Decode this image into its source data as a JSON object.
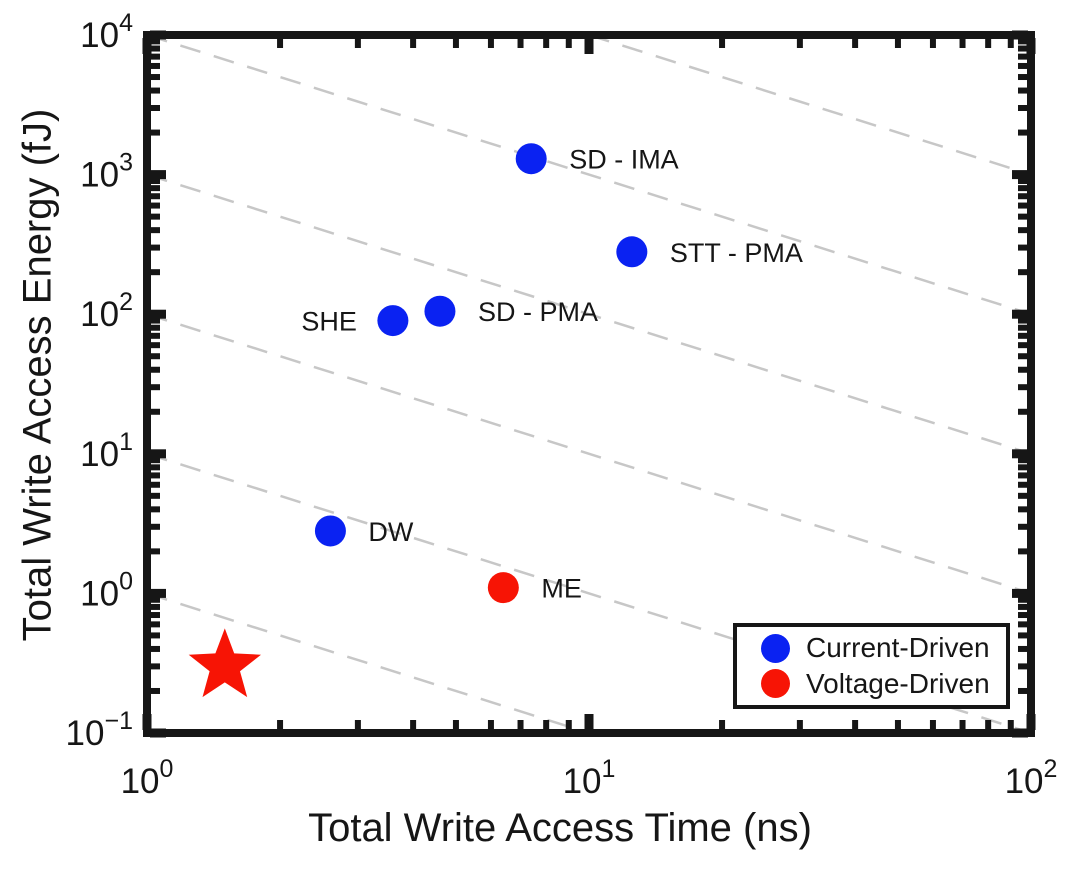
{
  "chart_data": {
    "type": "scatter",
    "title": "",
    "xlabel": "Total Write Access Time (ns)",
    "ylabel": "Total Write Access Energy (fJ)",
    "xscale": "log",
    "yscale": "log",
    "xlim": [
      1,
      100
    ],
    "ylim": [
      0.1,
      10000
    ],
    "x_decade_range": [
      0,
      2
    ],
    "y_decade_range": [
      -1,
      4
    ],
    "x_tick_exponents": [
      0,
      1,
      2
    ],
    "y_tick_exponents": [
      4,
      3,
      2,
      1,
      0,
      -1
    ],
    "guide_lines": {
      "style": "dashed",
      "color": "#c7c7c7",
      "slope_loglog": -1,
      "meaning": "constant energy-delay-product diagonals",
      "intercept_exponents": [
        0,
        1,
        2,
        3,
        4,
        5
      ]
    },
    "series": [
      {
        "name": "Current-Driven",
        "marker": "circle",
        "color": "#0a22f2",
        "points": [
          {
            "label": "SD - IMA",
            "x": 7.4,
            "y": 1300,
            "label_side": "right"
          },
          {
            "label": "STT - PMA",
            "x": 12.5,
            "y": 280,
            "label_side": "right"
          },
          {
            "label": "SD - PMA",
            "x": 4.6,
            "y": 105,
            "label_side": "right"
          },
          {
            "label": "SHE",
            "x": 3.6,
            "y": 90,
            "label_side": "left"
          },
          {
            "label": "DW",
            "x": 2.6,
            "y": 2.8,
            "label_side": "right"
          }
        ]
      },
      {
        "name": "Voltage-Driven",
        "marker": "circle",
        "color": "#f71405",
        "points": [
          {
            "label": "ME",
            "x": 6.4,
            "y": 1.1,
            "label_side": "right"
          }
        ]
      },
      {
        "name": "star",
        "marker": "star",
        "color": "#f71405",
        "points": [
          {
            "label": "",
            "x": 1.5,
            "y": 0.3,
            "label_side": "right"
          }
        ]
      }
    ],
    "legend": {
      "position": "bottom-right",
      "entries": [
        {
          "label": "Current-Driven",
          "color": "#0a22f2"
        },
        {
          "label": "Voltage-Driven",
          "color": "#f71405"
        }
      ]
    }
  }
}
